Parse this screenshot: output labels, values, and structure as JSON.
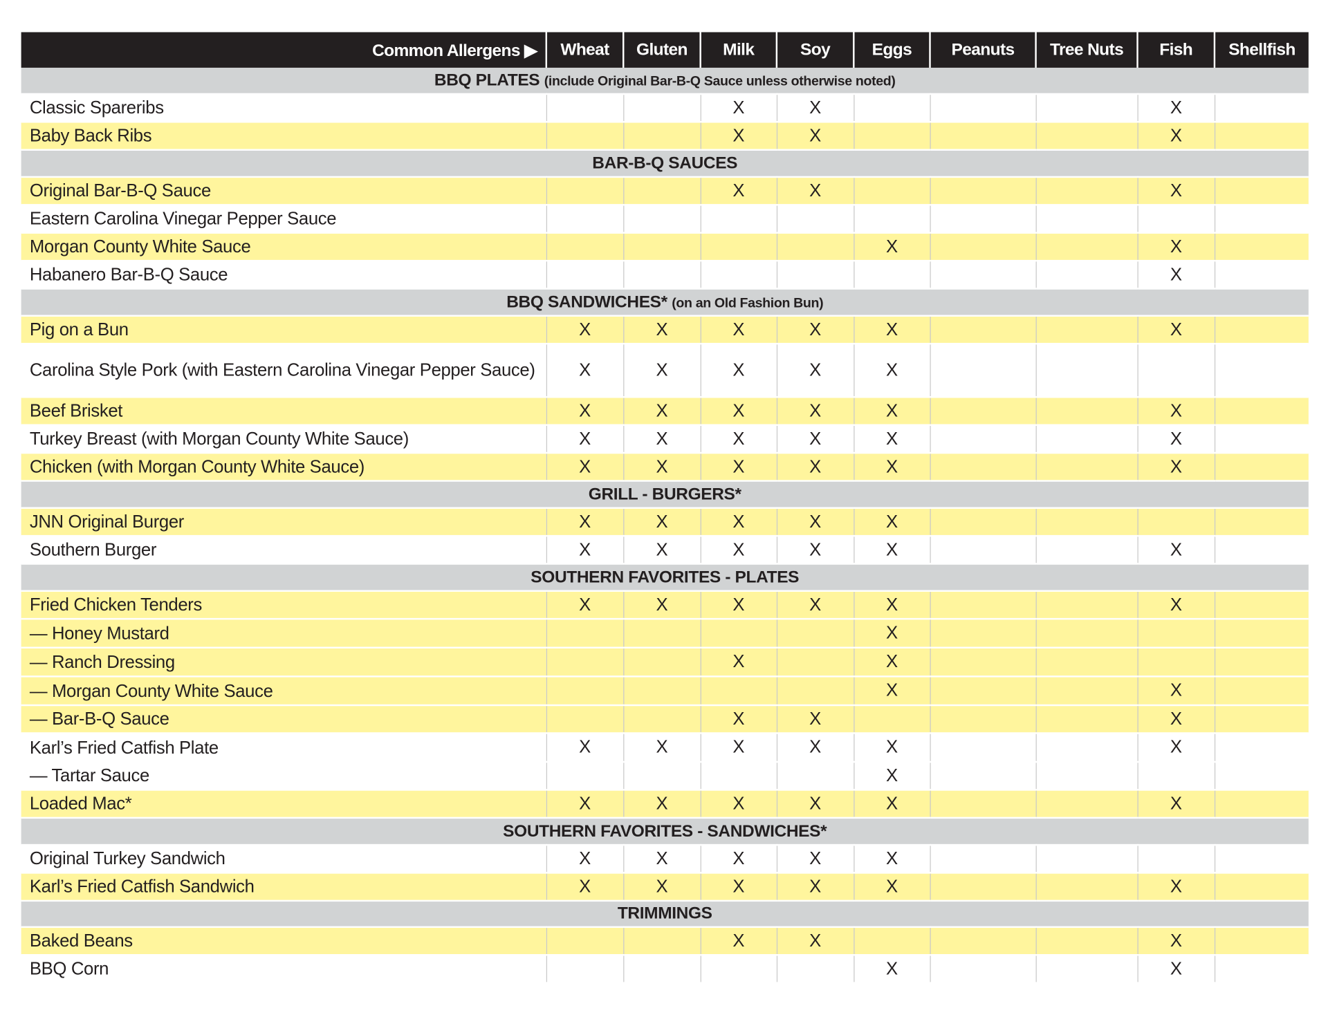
{
  "header": {
    "title": "Common Allergens ▶",
    "allergens": [
      "Wheat",
      "Gluten",
      "Milk",
      "Soy",
      "Eggs",
      "Peanuts",
      "Tree Nuts",
      "Fish",
      "Shellfish"
    ]
  },
  "colors": {
    "header_bg": "#231f20",
    "section_bg": "#d1d3d4",
    "highlight": "#fff59d"
  },
  "rows": [
    {
      "type": "section",
      "title": "BBQ PLATES",
      "note": "(include Original Bar-B-Q Sauce unless otherwise noted)"
    },
    {
      "type": "item",
      "name": "Classic Spareribs",
      "shade": "white",
      "marks": [
        "",
        "",
        "X",
        "X",
        "",
        "",
        "",
        "X",
        ""
      ]
    },
    {
      "type": "item",
      "name": "Baby Back Ribs",
      "shade": "yellow",
      "marks": [
        "",
        "",
        "X",
        "X",
        "",
        "",
        "",
        "X",
        ""
      ]
    },
    {
      "type": "section",
      "title": "BAR-B-Q SAUCES",
      "note": ""
    },
    {
      "type": "item",
      "name": "Original Bar-B-Q Sauce",
      "shade": "yellow",
      "marks": [
        "",
        "",
        "X",
        "X",
        "",
        "",
        "",
        "X",
        ""
      ]
    },
    {
      "type": "item",
      "name": "Eastern Carolina Vinegar Pepper Sauce",
      "shade": "white",
      "marks": [
        "",
        "",
        "",
        "",
        "",
        "",
        "",
        "",
        ""
      ]
    },
    {
      "type": "item",
      "name": "Morgan County White Sauce",
      "shade": "yellow",
      "marks": [
        "",
        "",
        "",
        "",
        "X",
        "",
        "",
        "X",
        ""
      ]
    },
    {
      "type": "item",
      "name": "Habanero Bar-B-Q Sauce",
      "shade": "white",
      "marks": [
        "",
        "",
        "",
        "",
        "",
        "",
        "",
        "X",
        ""
      ]
    },
    {
      "type": "section",
      "title": "BBQ SANDWICHES*",
      "note": "(on an Old Fashion Bun)"
    },
    {
      "type": "item",
      "name": "Pig on a Bun",
      "shade": "yellow",
      "marks": [
        "X",
        "X",
        "X",
        "X",
        "X",
        "",
        "",
        "X",
        ""
      ]
    },
    {
      "type": "item",
      "name": "Carolina Style Pork (with Eastern Carolina Vinegar Pepper Sauce)",
      "shade": "white",
      "marks": [
        "X",
        "X",
        "X",
        "X",
        "X",
        "",
        "",
        "",
        ""
      ]
    },
    {
      "type": "item",
      "name": "Beef Brisket",
      "shade": "yellow",
      "marks": [
        "X",
        "X",
        "X",
        "X",
        "X",
        "",
        "",
        "X",
        ""
      ]
    },
    {
      "type": "item",
      "name": "Turkey Breast (with Morgan County White Sauce)",
      "shade": "white",
      "marks": [
        "X",
        "X",
        "X",
        "X",
        "X",
        "",
        "",
        "X",
        ""
      ]
    },
    {
      "type": "item",
      "name": "Chicken (with Morgan County White Sauce)",
      "shade": "yellow",
      "marks": [
        "X",
        "X",
        "X",
        "X",
        "X",
        "",
        "",
        "X",
        ""
      ]
    },
    {
      "type": "section",
      "title": "GRILL - BURGERS*",
      "note": ""
    },
    {
      "type": "item",
      "name": "JNN Original Burger",
      "shade": "yellow",
      "marks": [
        "X",
        "X",
        "X",
        "X",
        "X",
        "",
        "",
        "",
        ""
      ]
    },
    {
      "type": "item",
      "name": "Southern Burger",
      "shade": "white",
      "marks": [
        "X",
        "X",
        "X",
        "X",
        "X",
        "",
        "",
        "X",
        ""
      ]
    },
    {
      "type": "section",
      "title": "SOUTHERN FAVORITES - PLATES",
      "note": ""
    },
    {
      "type": "item",
      "name": "Fried Chicken Tenders",
      "shade": "yellow",
      "marks": [
        "X",
        "X",
        "X",
        "X",
        "X",
        "",
        "",
        "X",
        ""
      ]
    },
    {
      "type": "item",
      "name": "— Honey Mustard",
      "shade": "yellow",
      "marks": [
        "",
        "",
        "",
        "",
        "X",
        "",
        "",
        "",
        ""
      ]
    },
    {
      "type": "item",
      "name": "— Ranch Dressing",
      "shade": "yellow",
      "marks": [
        "",
        "",
        "X",
        "",
        "X",
        "",
        "",
        "",
        ""
      ]
    },
    {
      "type": "item",
      "name": "— Morgan County White Sauce",
      "shade": "yellow",
      "marks": [
        "",
        "",
        "",
        "",
        "X",
        "",
        "",
        "X",
        ""
      ]
    },
    {
      "type": "item",
      "name": "— Bar-B-Q Sauce",
      "shade": "yellow",
      "marks": [
        "",
        "",
        "X",
        "X",
        "",
        "",
        "",
        "X",
        ""
      ]
    },
    {
      "type": "item",
      "name": "Karl’s Fried Catfish Plate",
      "shade": "white",
      "marks": [
        "X",
        "X",
        "X",
        "X",
        "X",
        "",
        "",
        "X",
        ""
      ]
    },
    {
      "type": "item",
      "name": "— Tartar Sauce",
      "shade": "white",
      "marks": [
        "",
        "",
        "",
        "",
        "X",
        "",
        "",
        "",
        ""
      ]
    },
    {
      "type": "item",
      "name": "Loaded Mac*",
      "shade": "yellow",
      "marks": [
        "X",
        "X",
        "X",
        "X",
        "X",
        "",
        "",
        "X",
        ""
      ]
    },
    {
      "type": "section",
      "title": "SOUTHERN FAVORITES - SANDWICHES*",
      "note": ""
    },
    {
      "type": "item",
      "name": "Original Turkey Sandwich",
      "shade": "white",
      "marks": [
        "X",
        "X",
        "X",
        "X",
        "X",
        "",
        "",
        "",
        ""
      ]
    },
    {
      "type": "item",
      "name": "Karl’s Fried Catfish Sandwich",
      "shade": "yellow",
      "marks": [
        "X",
        "X",
        "X",
        "X",
        "X",
        "",
        "",
        "X",
        ""
      ]
    },
    {
      "type": "section",
      "title": "TRIMMINGS",
      "note": ""
    },
    {
      "type": "item",
      "name": "Baked Beans",
      "shade": "yellow",
      "marks": [
        "",
        "",
        "X",
        "X",
        "",
        "",
        "",
        "X",
        ""
      ]
    },
    {
      "type": "item",
      "name": "BBQ Corn",
      "shade": "white",
      "marks": [
        "",
        "",
        "",
        "",
        "X",
        "",
        "",
        "X",
        ""
      ]
    }
  ]
}
